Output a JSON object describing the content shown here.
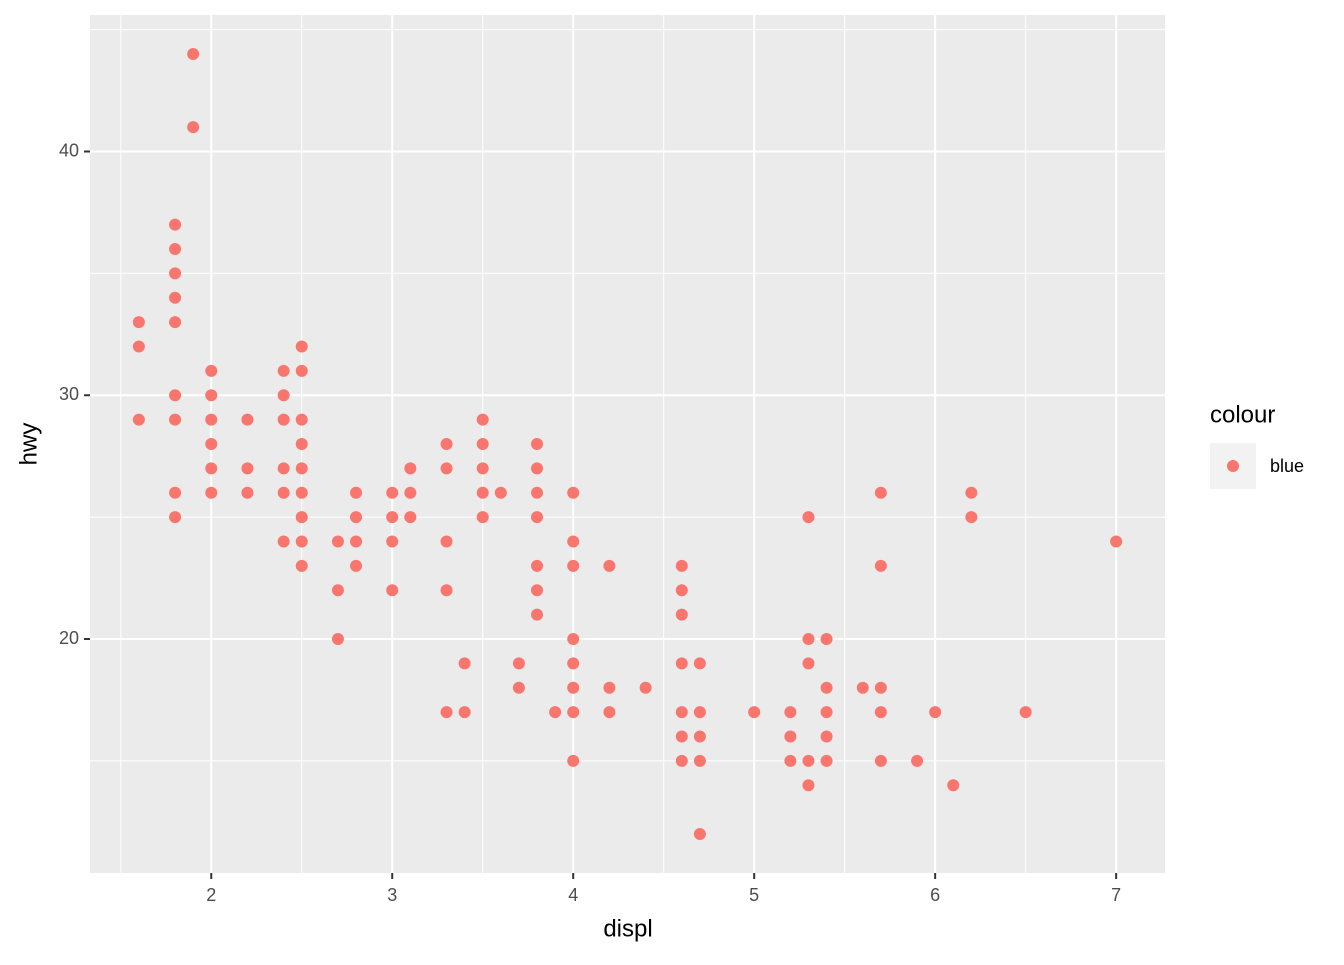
{
  "chart_data": {
    "type": "scatter",
    "x_label": "displ",
    "y_label": "hwy",
    "legend_title": "colour",
    "xlim": [
      1.33,
      7.27
    ],
    "ylim": [
      10.4,
      45.6
    ],
    "xticks": [
      2,
      3,
      4,
      5,
      6,
      7
    ],
    "yticks": [
      20,
      30,
      40
    ],
    "grid": true,
    "series": [
      {
        "name": "blue",
        "color": "#F8766D",
        "x": [
          1.6,
          1.6,
          1.6,
          1.8,
          1.8,
          1.8,
          1.8,
          1.8,
          1.8,
          1.8,
          1.8,
          1.8,
          1.9,
          1.9,
          2.0,
          2.0,
          2.0,
          2.0,
          2.0,
          2.0,
          2.2,
          2.2,
          2.2,
          2.4,
          2.4,
          2.4,
          2.4,
          2.4,
          2.4,
          2.5,
          2.5,
          2.5,
          2.5,
          2.5,
          2.5,
          2.5,
          2.5,
          2.5,
          2.7,
          2.7,
          2.7,
          2.8,
          2.8,
          2.8,
          2.8,
          3.0,
          3.0,
          3.0,
          3.0,
          3.1,
          3.1,
          3.1,
          3.3,
          3.3,
          3.3,
          3.3,
          3.3,
          3.4,
          3.4,
          3.5,
          3.5,
          3.5,
          3.5,
          3.5,
          3.6,
          3.7,
          3.7,
          3.8,
          3.8,
          3.8,
          3.8,
          3.8,
          3.8,
          3.8,
          3.9,
          4.0,
          4.0,
          4.0,
          4.0,
          4.0,
          4.0,
          4.0,
          4.0,
          4.2,
          4.2,
          4.2,
          4.4,
          4.6,
          4.6,
          4.6,
          4.6,
          4.6,
          4.6,
          4.6,
          4.7,
          4.7,
          4.7,
          4.7,
          4.7,
          5.0,
          5.2,
          5.2,
          5.2,
          5.3,
          5.3,
          5.3,
          5.3,
          5.3,
          5.4,
          5.4,
          5.4,
          5.4,
          5.4,
          5.6,
          5.7,
          5.7,
          5.7,
          5.7,
          5.7,
          5.9,
          6.0,
          6.1,
          6.2,
          6.2,
          6.5,
          7.0
        ],
        "y": [
          33,
          32,
          29,
          37,
          36,
          35,
          34,
          33,
          30,
          29,
          26,
          25,
          44,
          41,
          31,
          30,
          29,
          28,
          27,
          26,
          29,
          27,
          26,
          31,
          30,
          29,
          27,
          26,
          24,
          32,
          31,
          29,
          28,
          27,
          26,
          25,
          24,
          23,
          24,
          22,
          20,
          26,
          25,
          24,
          23,
          26,
          25,
          24,
          22,
          27,
          26,
          25,
          28,
          27,
          24,
          22,
          17,
          19,
          17,
          29,
          28,
          27,
          26,
          25,
          26,
          19,
          18,
          28,
          27,
          26,
          25,
          23,
          22,
          21,
          17,
          26,
          24,
          23,
          20,
          19,
          18,
          17,
          15,
          23,
          18,
          17,
          18,
          23,
          22,
          21,
          19,
          17,
          16,
          15,
          19,
          17,
          16,
          15,
          12,
          17,
          17,
          16,
          15,
          25,
          20,
          19,
          15,
          14,
          20,
          18,
          17,
          16,
          15,
          18,
          26,
          23,
          18,
          17,
          15,
          15,
          17,
          14,
          26,
          25,
          17,
          24
        ]
      }
    ],
    "legend": "right"
  }
}
